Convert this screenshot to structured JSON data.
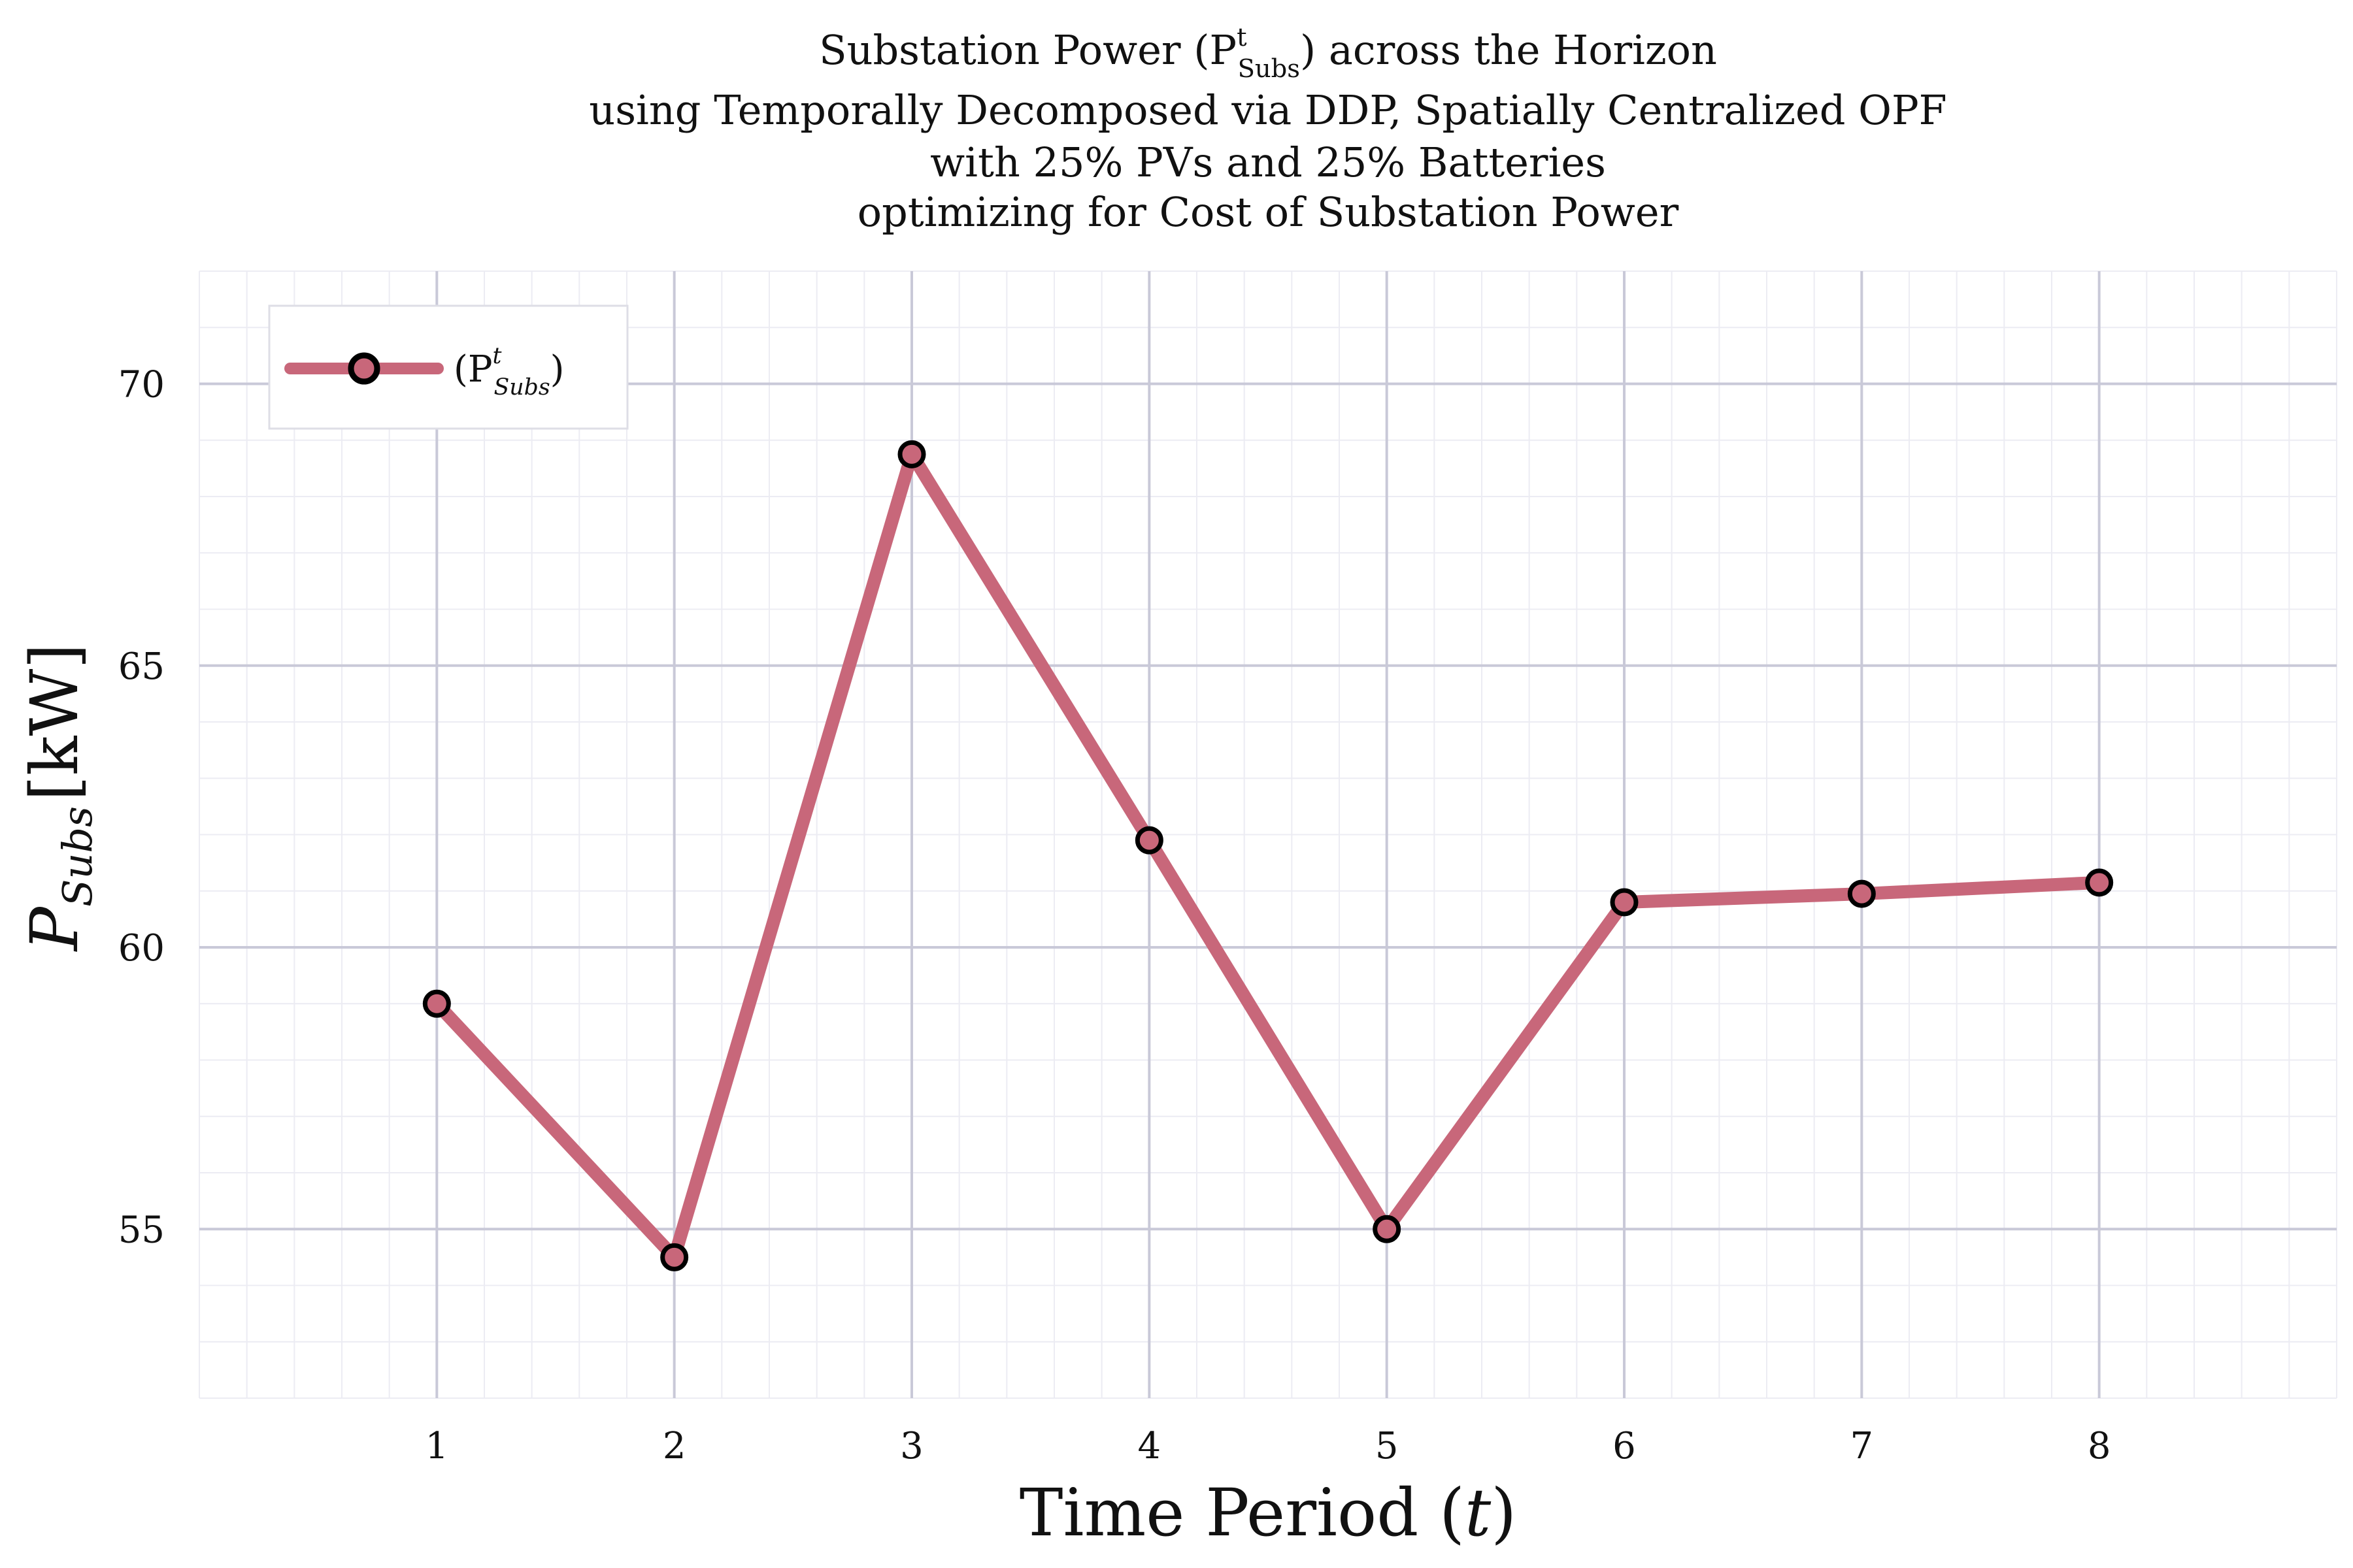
{
  "chart_data": {
    "type": "line",
    "title_lines": [
      "Substation Power (P",
      "using Temporally Decomposed via DDP, Spatially Centralized OPF",
      "with 25% PVs and 25% Batteries",
      "optimizing for Cost of Substation Power"
    ],
    "title_first_line": {
      "prefix": "Substation Power (P",
      "sup": "t",
      "sub": "Subs",
      "suffix": ") across the Horizon"
    },
    "xlabel": {
      "prefix": "Time Period (",
      "var": "t",
      "suffix": ")"
    },
    "ylabel": {
      "var": "P",
      "sub": "Subs",
      "unit": "[kW]"
    },
    "x": [
      1,
      2,
      3,
      4,
      5,
      6,
      7,
      8
    ],
    "x_tick_labels": [
      "1",
      "2",
      "3",
      "4",
      "5",
      "6",
      "7",
      "8"
    ],
    "xlim": [
      0,
      9
    ],
    "y_ticks": [
      55,
      60,
      65,
      70
    ],
    "y_tick_labels": [
      "55",
      "60",
      "65",
      "70"
    ],
    "ylim": [
      52,
      72
    ],
    "series": [
      {
        "name": "(P^t_Subs)",
        "legend": {
          "prefix": "(P",
          "sup": "t",
          "sub": "Subs",
          "suffix": ")"
        },
        "values": [
          59.0,
          54.5,
          68.75,
          61.9,
          55.0,
          60.8,
          60.95,
          61.15
        ],
        "color": "#c8677a",
        "marker": "circle",
        "marker_edge_color": "#000000"
      }
    ],
    "grid": true,
    "legend_position": "top-left",
    "colors": {
      "major_grid": "#c9c9d8",
      "minor_grid": "#ececf3",
      "line": "#c8677a"
    }
  }
}
